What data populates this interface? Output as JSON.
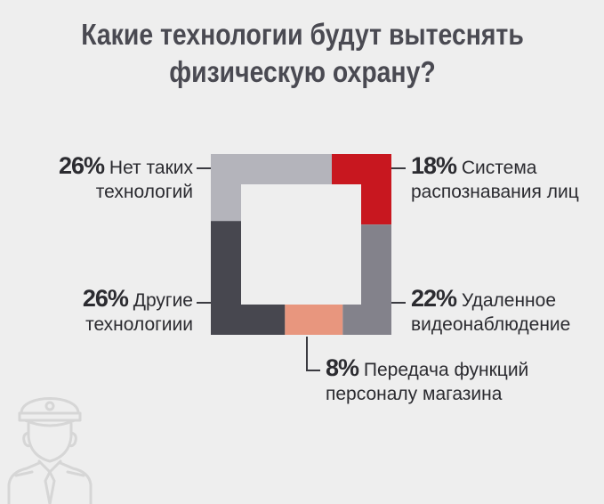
{
  "title": {
    "line1": "Какие технологии будут вытеснять",
    "line2": "физическую охрану?"
  },
  "chart_data": {
    "type": "pie",
    "variant": "square-donut",
    "title": "Какие технологии будут вытеснять физическую охрану?",
    "slices": [
      {
        "pct_label": "18%",
        "value": 18,
        "line1": "Система",
        "line2": "распознавания лиц",
        "color": "#c8171f"
      },
      {
        "pct_label": "22%",
        "value": 22,
        "line1": "Удаленное",
        "line2": "видеонаблюдение",
        "color": "#83828b"
      },
      {
        "pct_label": "8%",
        "value": 8,
        "line1": "Передача функций",
        "line2": "персоналу магазина",
        "color": "#e8967e"
      },
      {
        "pct_label": "26%",
        "value": 26,
        "line1": "Другие",
        "line2": "технологиии",
        "color": "#47474f"
      },
      {
        "pct_label": "26%",
        "value": 26,
        "line1": "Нет таких",
        "line2": "технологий",
        "color": "#b4b4bb"
      }
    ]
  },
  "icons": {
    "guard": "security-guard-icon"
  }
}
